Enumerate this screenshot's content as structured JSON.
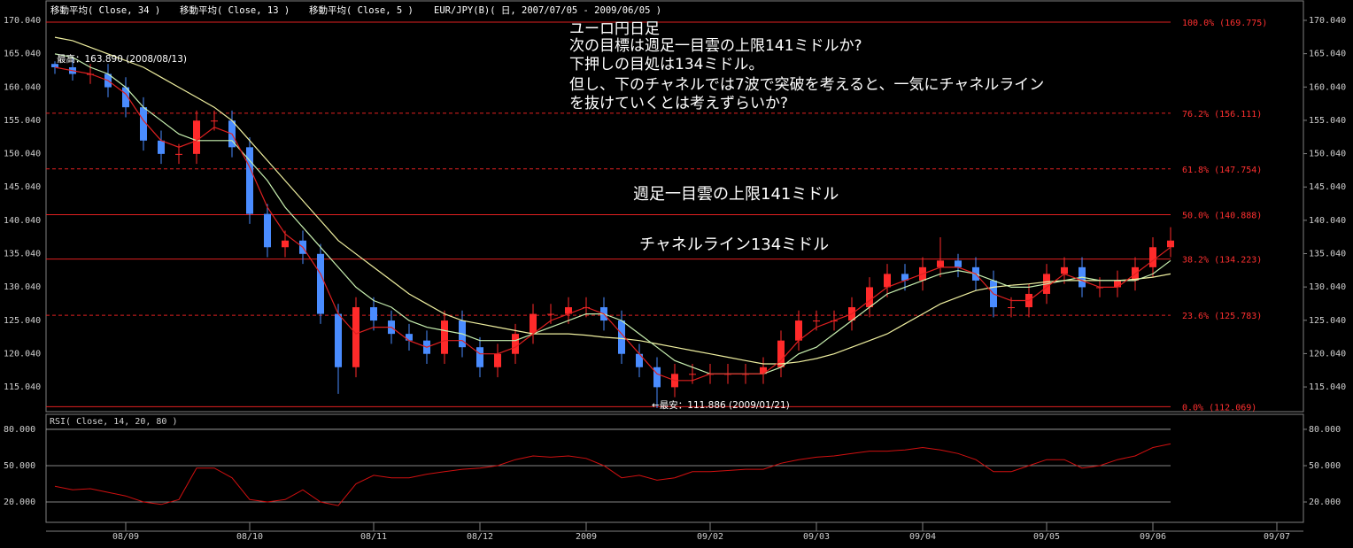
{
  "chart_data": [
    {
      "type": "candlestick",
      "subtitle": "EUR/JPY(B)( 日, 2007/07/05 - 2009/06/05 )",
      "categories": [
        null,
        null,
        null,
        null,
        "08/09",
        null,
        null,
        null,
        null,
        null,
        null,
        "08/10",
        null,
        null,
        null,
        null,
        null,
        null,
        "08/11",
        null,
        null,
        null,
        null,
        null,
        "08/12",
        null,
        null,
        null,
        null,
        null,
        "2009",
        null,
        null,
        null,
        null,
        null,
        null,
        "09/02",
        null,
        null,
        null,
        null,
        null,
        "09/03",
        null,
        null,
        null,
        null,
        null,
        "09/04",
        null,
        null,
        null,
        null,
        null,
        null,
        "09/05",
        null,
        null,
        null,
        null,
        null,
        "09/06",
        null,
        null,
        null,
        null,
        null,
        null,
        "09/07",
        null
      ],
      "open": [
        163.5,
        163,
        162,
        162,
        160,
        157,
        152,
        150,
        150,
        155,
        155,
        151,
        141,
        136,
        137,
        135,
        126,
        118,
        127,
        125,
        123,
        122,
        120,
        125,
        121,
        118,
        120,
        123,
        126,
        126,
        127,
        127,
        125,
        120,
        118,
        115,
        117,
        117,
        117,
        117,
        117,
        118,
        122,
        125,
        125,
        125,
        127,
        130,
        132,
        131,
        133,
        134,
        133,
        131,
        127,
        127,
        129,
        132,
        133,
        130,
        130,
        131,
        133,
        136,
        null,
        null,
        null,
        null,
        null,
        null,
        null
      ],
      "high": [
        163.89,
        164.5,
        163.5,
        163.5,
        161.5,
        158.5,
        153.5,
        151.5,
        156.5,
        156.5,
        156.5,
        152.5,
        142.5,
        138.5,
        138.5,
        136.5,
        127.5,
        128.5,
        128.5,
        126.5,
        124.5,
        123.5,
        126.5,
        126.5,
        122.5,
        121.5,
        124.5,
        127.5,
        127.5,
        128.5,
        128.5,
        128.5,
        126.5,
        121.5,
        119.5,
        118.5,
        118.5,
        118.5,
        118.5,
        118.5,
        119.5,
        123.5,
        126.5,
        126.5,
        126.5,
        128.5,
        131.5,
        133.5,
        133.5,
        134.5,
        137.5,
        135,
        134.5,
        132.5,
        128.5,
        130.5,
        133.5,
        134.5,
        134.5,
        131.5,
        132.5,
        134.5,
        137.5,
        139,
        null,
        null,
        null,
        null,
        null,
        null,
        null
      ],
      "low": [
        162,
        161,
        160.5,
        158.5,
        155.5,
        150.5,
        148.5,
        148.5,
        148.5,
        153.5,
        149.5,
        139.5,
        134.5,
        134.5,
        133.5,
        124.5,
        114,
        116.5,
        123.5,
        121.5,
        120.5,
        118.5,
        118.5,
        119.5,
        116.5,
        116.5,
        118.5,
        121.5,
        124.5,
        124.5,
        125.5,
        123.5,
        118.5,
        116.5,
        111.886,
        113.5,
        115.5,
        115.5,
        115.5,
        115.5,
        115.5,
        116.5,
        120.5,
        123.5,
        123.5,
        123.5,
        125.5,
        128.5,
        129.5,
        129.5,
        131.5,
        131.5,
        129.5,
        125.5,
        125.5,
        125.5,
        127.5,
        130.5,
        128.5,
        128.5,
        128.5,
        129.5,
        131.5,
        134.5,
        null,
        null,
        null,
        null,
        null,
        null,
        null
      ],
      "close": [
        163,
        162,
        162,
        160,
        157,
        152,
        150,
        150,
        155,
        155,
        151,
        141,
        136,
        137,
        135,
        126,
        118,
        127,
        125,
        123,
        122,
        120,
        125,
        121,
        118,
        120,
        123,
        126,
        126,
        127,
        127,
        125,
        120,
        118,
        115,
        117,
        117,
        117,
        117,
        117,
        118,
        122,
        125,
        125,
        125,
        127,
        130,
        132,
        131,
        133,
        134,
        133,
        131,
        127,
        127,
        129,
        132,
        133,
        130,
        130,
        131,
        133,
        136,
        137,
        null,
        null,
        null,
        null,
        null,
        null,
        null
      ],
      "up_color": "#ff2a2a",
      "down_color": "#4a8cff",
      "series": [
        {
          "name": "移動平均( Close, 34 )",
          "color": "#f0f0a0",
          "values": [
            167.5,
            167,
            166,
            165,
            164,
            163,
            161.5,
            160,
            158.5,
            157,
            155,
            152,
            149,
            146,
            143,
            140,
            137,
            135,
            133,
            131,
            129,
            127.5,
            126,
            125,
            124.5,
            124,
            123.5,
            123,
            123,
            123,
            122.8,
            122.5,
            122.3,
            122,
            121.5,
            121,
            120.5,
            120,
            119.5,
            119,
            118.5,
            118.5,
            118.8,
            119.3,
            120,
            121,
            122,
            123,
            124.5,
            126,
            127.5,
            128.5,
            129.5,
            130,
            130.3,
            130.5,
            130.8,
            131,
            131,
            131,
            131,
            131.2,
            131.5,
            132,
            null,
            null,
            null,
            null,
            null,
            null,
            null
          ]
        },
        {
          "name": "移動平均( Close, 13 )",
          "color": "#c8f0b0",
          "values": [
            165,
            164.5,
            163,
            162,
            160,
            157,
            155,
            153,
            152,
            152,
            152,
            149,
            146,
            142,
            139,
            136,
            133,
            130,
            128,
            127,
            125,
            124,
            123.5,
            123,
            122,
            122,
            122,
            123,
            124,
            125,
            126,
            126,
            125,
            123,
            121,
            119,
            118,
            117,
            117,
            117,
            117,
            118,
            120,
            121,
            123,
            125,
            127,
            129,
            130,
            131,
            132,
            132.5,
            132,
            131,
            130,
            130,
            130.5,
            131,
            131.5,
            131,
            131,
            131,
            132,
            134,
            null,
            null,
            null,
            null,
            null,
            null,
            null
          ]
        },
        {
          "name": "移動平均( Close, 5 )",
          "color": "#e02020",
          "values": [
            163,
            162.5,
            162,
            161,
            159,
            155,
            152,
            151,
            152,
            154,
            153,
            148,
            142,
            138,
            136,
            132,
            126,
            123,
            124,
            124,
            122,
            121,
            122,
            122,
            120,
            120,
            121,
            123,
            125,
            126,
            127,
            126,
            123,
            120,
            117,
            116,
            116,
            117,
            117,
            117,
            117,
            119,
            122,
            124,
            125,
            126,
            128,
            130,
            131,
            132,
            133,
            133,
            132,
            129,
            128,
            128,
            130,
            132,
            131,
            130,
            130,
            132,
            134,
            136,
            null,
            null,
            null,
            null,
            null,
            null,
            null
          ]
        }
      ],
      "ylim": [
        111.33,
        172.96
      ],
      "yticks": [
        {
          "value": 170.04,
          "label": "170.040"
        },
        {
          "value": 165.04,
          "label": "165.040"
        },
        {
          "value": 160.04,
          "label": "160.040"
        },
        {
          "value": 155.04,
          "label": "155.040"
        },
        {
          "value": 150.04,
          "label": "150.040"
        },
        {
          "value": 145.04,
          "label": "145.040"
        },
        {
          "value": 140.04,
          "label": "140.040"
        },
        {
          "value": 135.04,
          "label": "135.040"
        },
        {
          "value": 130.04,
          "label": "130.040"
        },
        {
          "value": 125.04,
          "label": "125.040"
        },
        {
          "value": 120.04,
          "label": "120.040"
        },
        {
          "value": 115.04,
          "label": "115.040"
        }
      ],
      "levels": [
        {
          "value": 169.775,
          "label": "100.0% (169.775)",
          "dashed": false
        },
        {
          "value": 156.111,
          "label": "76.2% (156.111)",
          "dashed": true
        },
        {
          "value": 147.754,
          "label": "61.8% (147.754)",
          "dashed": true
        },
        {
          "value": 140.888,
          "label": "50.0% (140.888)",
          "dashed": false
        },
        {
          "value": 134.223,
          "label": "38.2% (134.223)",
          "dashed": false
        },
        {
          "value": 125.783,
          "label": "23.6% (125.783)",
          "dashed": true
        },
        {
          "value": 112.069,
          "label": "0.0% (112.069)",
          "dashed": false
        }
      ],
      "annotations": [
        "ユーロ円日足",
        "次の目標は週足一目雲の上限141ミドルか?",
        "下押しの目処は134ミドル。",
        "但し、下のチャネルでは7波で突破を考えると、一気にチャネルライン",
        "を抜けていくとは考えずらいか?",
        "週足一目雲の上限141ミドル",
        "チャネルライン134ミドル",
        "最高：163.890 (2008/08/13)",
        "←最安：111.886 (2009/01/21)"
      ]
    },
    {
      "type": "line",
      "title": "RSI( Close, 14, 20, 80 )",
      "color": "#d01010",
      "values": [
        33,
        30,
        31,
        28,
        25,
        20,
        18,
        22,
        48,
        48,
        40,
        22,
        20,
        22,
        30,
        20,
        17,
        35,
        42,
        40,
        40,
        43,
        45,
        47,
        48,
        50,
        55,
        58,
        57,
        58,
        56,
        50,
        40,
        42,
        38,
        40,
        45,
        45,
        46,
        47,
        47,
        52,
        55,
        57,
        58,
        60,
        62,
        62,
        63,
        65,
        63,
        60,
        55,
        45,
        45,
        50,
        55,
        55,
        48,
        50,
        55,
        58,
        65,
        68,
        null,
        null,
        null,
        null,
        null,
        null,
        null
      ],
      "ylim": [
        3.2,
        92.4
      ],
      "yticks": [
        {
          "value": 80,
          "label": "80.000"
        },
        {
          "value": 50,
          "label": "50.000"
        },
        {
          "value": 20,
          "label": "20.000"
        }
      ],
      "grid": true
    }
  ]
}
